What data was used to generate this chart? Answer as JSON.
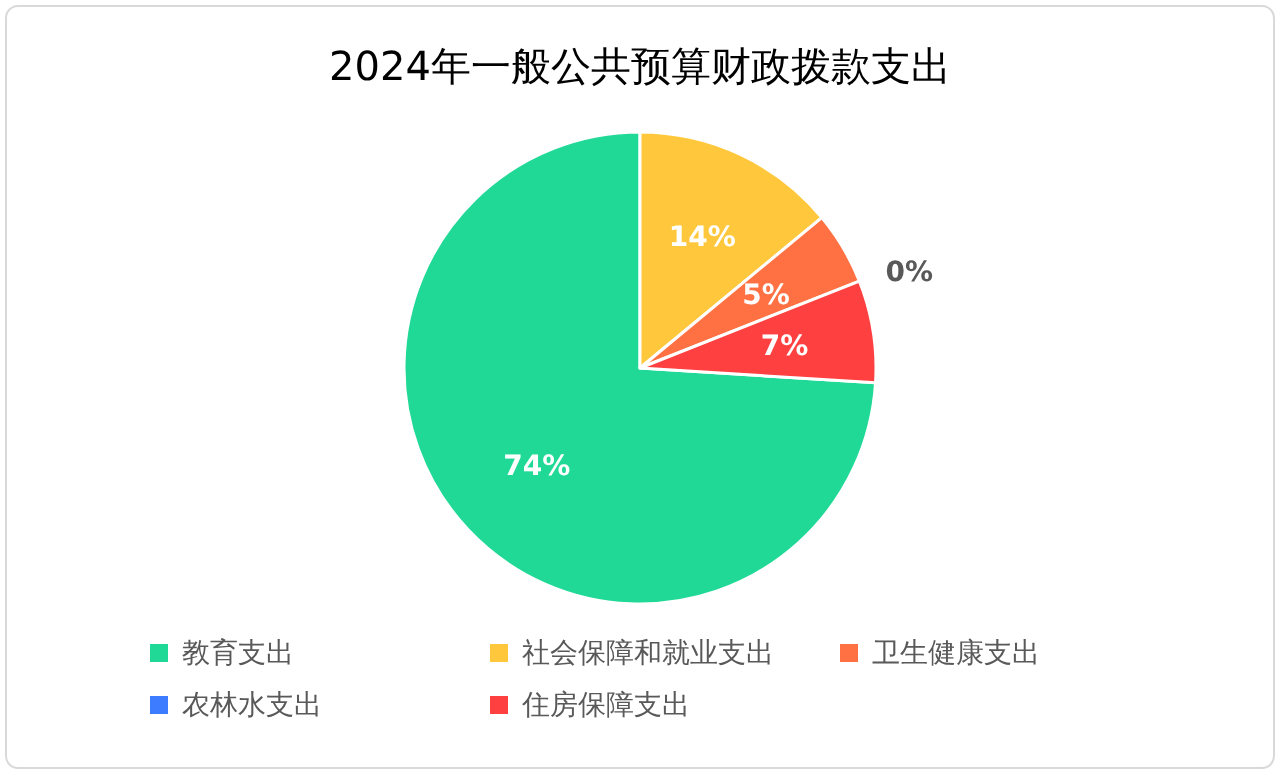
{
  "chart_data": {
    "type": "pie",
    "title": "2024年一般公共预算财政拨款支出",
    "categories": [
      "教育支出",
      "社会保障和就业支出",
      "卫生健康支出",
      "农林水支出",
      "住房保障支出"
    ],
    "values": [
      74,
      14,
      5,
      0,
      7
    ],
    "colors": [
      "#20d997",
      "#ffc83c",
      "#ff7143",
      "#3d7bff",
      "#ff4040"
    ],
    "value_labels": [
      "74%",
      "14%",
      "5%",
      "0%",
      "7%"
    ],
    "legend": "bottom"
  }
}
